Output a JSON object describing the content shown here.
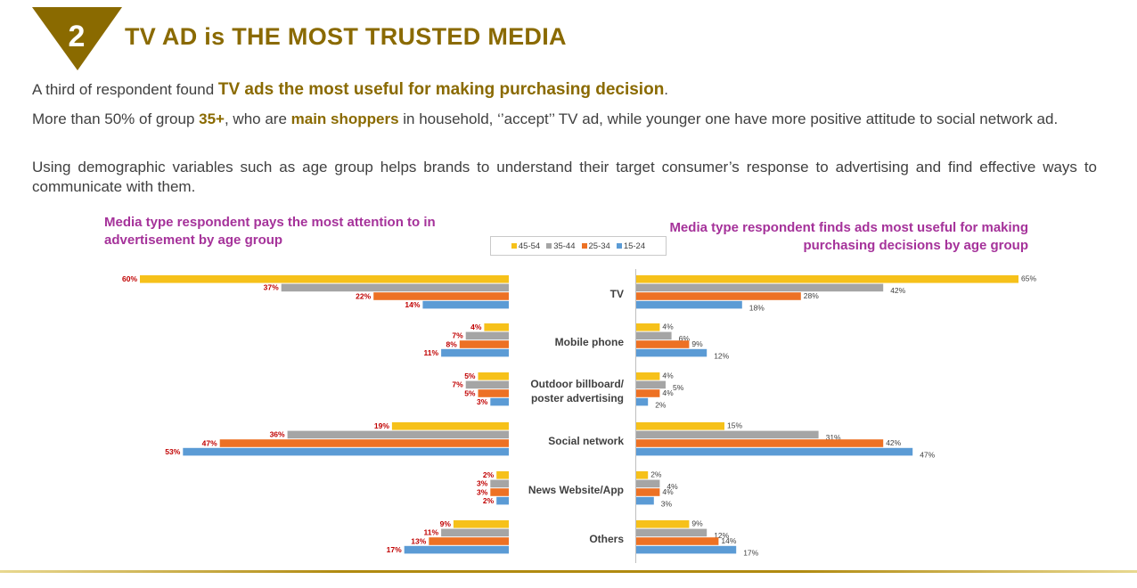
{
  "slide": {
    "number": "2",
    "title": "TV AD is THE MOST TRUSTED MEDIA",
    "para1": {
      "pre": "A third of respondent found ",
      "hl": "TV ads the most useful for making purchasing decision",
      "post": "."
    },
    "para2": {
      "pre": "More than 50% of group ",
      "hl1": "35+",
      "mid": ", who are ",
      "hl2": "main shoppers",
      "post": " in household, ‘’accept’’ TV ad, while younger one have more positive attitude to social network ad."
    },
    "para3": "Using demographic variables such as age group helps brands to understand their target consumer’s response to advertising and find effective ways to communicate with them."
  },
  "colors": {
    "45-54": "#f6c11a",
    "35-44": "#a5a5a5",
    "25-34": "#ed7124",
    "15-24": "#5b9bd5",
    "title": "#8a6a00",
    "chart_title": "#a5329a",
    "left_label": "#c00000"
  },
  "legend": [
    "45-54",
    "35-44",
    "25-34",
    "15-24"
  ],
  "chart_data": [
    {
      "type": "bar",
      "orientation": "horizontal",
      "title": "Media type respondent pays the most attention to in advertisement by age group",
      "categories": [
        "TV",
        "Mobile phone",
        "Outdoor billboard/ poster advertising",
        "Social network",
        "News Website/App",
        "Others"
      ],
      "series": [
        {
          "name": "45-54",
          "values": [
            60,
            4,
            5,
            19,
            2,
            9
          ]
        },
        {
          "name": "35-44",
          "values": [
            37,
            7,
            7,
            36,
            3,
            11
          ]
        },
        {
          "name": "25-34",
          "values": [
            22,
            8,
            5,
            47,
            3,
            13
          ]
        },
        {
          "name": "15-24",
          "values": [
            14,
            11,
            3,
            53,
            2,
            17
          ]
        }
      ],
      "unit": "%"
    },
    {
      "type": "bar",
      "orientation": "horizontal",
      "title": "Media type respondent finds ads most useful for making purchasing decisions by age group",
      "categories": [
        "TV",
        "Mobile phone",
        "Outdoor billboard/ poster advertising",
        "Social network",
        "News Website/App",
        "Others"
      ],
      "series": [
        {
          "name": "45-54",
          "values": [
            65,
            4,
            4,
            15,
            2,
            9
          ]
        },
        {
          "name": "35-44",
          "values": [
            42,
            6,
            5,
            31,
            4,
            12
          ]
        },
        {
          "name": "25-34",
          "values": [
            28,
            9,
            4,
            42,
            4,
            14
          ]
        },
        {
          "name": "15-24",
          "values": [
            18,
            12,
            2,
            47,
            3,
            17
          ]
        }
      ],
      "unit": "%"
    }
  ]
}
